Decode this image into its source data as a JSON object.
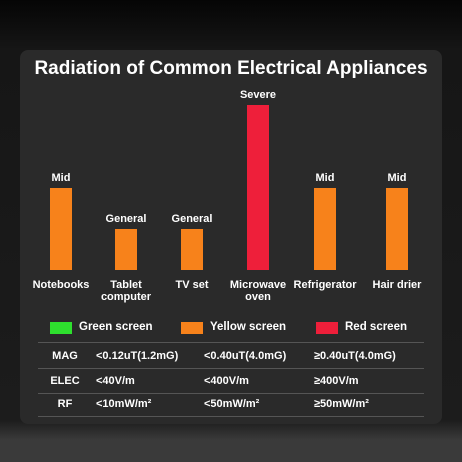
{
  "chart_data": {
    "type": "bar",
    "title": "Radiation of Common Electrical Appliances",
    "categories": [
      "Notebooks",
      "Tablet computer",
      "TV set",
      "Microwave oven",
      "Refrigerator",
      "Hair drier"
    ],
    "values": [
      2,
      1,
      1,
      4,
      2,
      2
    ],
    "value_labels": [
      "Mid",
      "General",
      "General",
      "Severe",
      "Mid",
      "Mid"
    ],
    "colors": [
      "#f7821b",
      "#f7821b",
      "#f7821b",
      "#ee1f3a",
      "#f7821b",
      "#f7821b"
    ]
  },
  "legend": [
    {
      "name": "Green screen",
      "color": "#2ee02e"
    },
    {
      "name": "Yellow screen",
      "color": "#f7821b"
    },
    {
      "name": "Red screen",
      "color": "#ee1f3a"
    }
  ],
  "table": {
    "rows": [
      [
        "MAG",
        "<0.12uT(1.2mG)",
        "<0.40uT(4.0mG)",
        "≥0.40uT(4.0mG)"
      ],
      [
        "ELEC",
        "<40V/m",
        "<400V/m",
        "≥400V/m"
      ],
      [
        "RF",
        "<10mW/m²",
        "<50mW/m²",
        "≥50mW/m²"
      ]
    ]
  }
}
